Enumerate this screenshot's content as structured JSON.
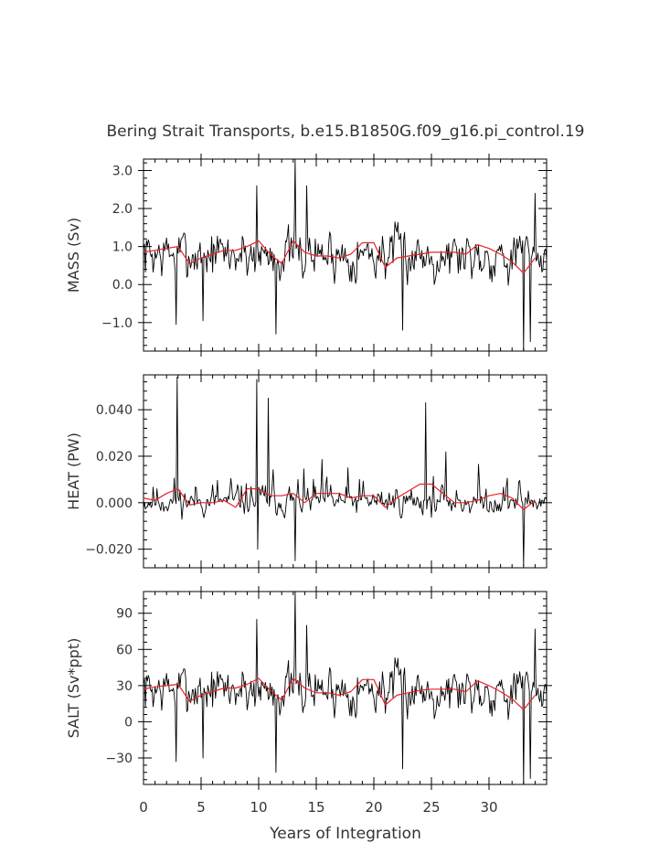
{
  "figure": {
    "title": "Bering Strait Transports, b.e15.B1850G.f09_g16.pi_control.19",
    "xlabel": "Years of Integration",
    "colors": {
      "monthly": "#000000",
      "annual": "#e8202a",
      "axes": "#000000",
      "text": "#333333"
    }
  },
  "chart_data": [
    {
      "type": "line",
      "name": "mass",
      "ylabel": "MASS (Sv)",
      "xlim": [
        0,
        35
      ],
      "ylim": [
        -1.75,
        3.3
      ],
      "yticks": [
        -1.0,
        0.0,
        1.0,
        2.0,
        3.0
      ],
      "ytick_labels": [
        "−1.0",
        "0.0",
        "1.0",
        "2.0",
        "3.0"
      ],
      "xticks": [
        0,
        5,
        10,
        15,
        20,
        25,
        30
      ],
      "series": [
        {
          "style": "monthly",
          "mean": 0.8,
          "amplitude": 0.75,
          "seed": 7,
          "spikes": [
            [
              2.8,
              -1.05
            ],
            [
              5.2,
              -0.95
            ],
            [
              9.8,
              2.6
            ],
            [
              11.5,
              -1.3
            ],
            [
              13.2,
              3.3
            ],
            [
              14.2,
              2.6
            ],
            [
              22.5,
              -1.2
            ],
            [
              33.0,
              -1.75
            ],
            [
              34.0,
              2.4
            ],
            [
              33.6,
              -1.5
            ]
          ]
        },
        {
          "style": "annual",
          "x": [
            0,
            1,
            2,
            3,
            4,
            5,
            6,
            7,
            8,
            9,
            10,
            11,
            12,
            13,
            14,
            15,
            16,
            17,
            18,
            19,
            20,
            21,
            22,
            23,
            24,
            25,
            26,
            27,
            28,
            29,
            30,
            31,
            32,
            33,
            34
          ],
          "y": [
            0.85,
            0.9,
            0.95,
            1.0,
            0.55,
            0.7,
            0.8,
            0.9,
            0.9,
            1.0,
            1.15,
            0.8,
            0.55,
            1.15,
            0.85,
            0.75,
            0.75,
            0.7,
            0.8,
            1.1,
            1.1,
            0.45,
            0.7,
            0.75,
            0.8,
            0.85,
            0.85,
            0.85,
            0.8,
            1.05,
            0.95,
            0.8,
            0.6,
            0.3,
            0.7
          ]
        }
      ]
    },
    {
      "type": "line",
      "name": "heat",
      "ylabel": "HEAT (PW)",
      "xlim": [
        0,
        35
      ],
      "ylim": [
        -0.028,
        0.055
      ],
      "yticks": [
        -0.02,
        0.0,
        0.02,
        0.04
      ],
      "ytick_labels": [
        "−0.020",
        "0.000",
        "0.020",
        "0.040"
      ],
      "xticks": [
        0,
        5,
        10,
        15,
        20,
        25,
        30
      ],
      "series": [
        {
          "style": "monthly",
          "mean": 0.001,
          "amplitude": 0.009,
          "seed": 11,
          "skew": true,
          "spikes": [
            [
              2.9,
              0.054
            ],
            [
              9.8,
              0.053
            ],
            [
              10.8,
              0.045
            ],
            [
              13.2,
              -0.025
            ],
            [
              24.5,
              0.043
            ],
            [
              33.0,
              -0.027
            ],
            [
              9.9,
              -0.02
            ]
          ]
        },
        {
          "style": "annual",
          "x": [
            0,
            1,
            2,
            3,
            4,
            5,
            6,
            7,
            8,
            9,
            10,
            11,
            12,
            13,
            14,
            15,
            16,
            17,
            18,
            19,
            20,
            21,
            22,
            23,
            24,
            25,
            26,
            27,
            28,
            29,
            30,
            31,
            32,
            33,
            34
          ],
          "y": [
            0.002,
            0.001,
            0.004,
            0.006,
            -0.001,
            0.0,
            0.0,
            0.001,
            -0.002,
            0.006,
            0.006,
            0.003,
            0.003,
            0.004,
            0.0,
            0.004,
            0.004,
            0.004,
            0.002,
            0.003,
            0.003,
            -0.002,
            0.002,
            0.005,
            0.008,
            0.008,
            0.004,
            0.0,
            0.0,
            0.001,
            0.003,
            0.004,
            0.002,
            -0.003,
            0.001
          ]
        }
      ]
    },
    {
      "type": "line",
      "name": "salt",
      "ylabel": "SALT (Sv*ppt)",
      "xlim": [
        0,
        35
      ],
      "ylim": [
        -52,
        108
      ],
      "yticks": [
        -30,
        0,
        30,
        60,
        90
      ],
      "ytick_labels": [
        "−30",
        "0",
        "30",
        "60",
        "90"
      ],
      "xticks": [
        0,
        5,
        10,
        15,
        20,
        25,
        30
      ],
      "xtick_labels": [
        "0",
        "5",
        "10",
        "15",
        "20",
        "25",
        "30"
      ],
      "series": [
        {
          "style": "monthly",
          "mean": 27,
          "amplitude": 23,
          "seed": 7,
          "spikes": [
            [
              2.8,
              -33
            ],
            [
              5.2,
              -30
            ],
            [
              9.8,
              85
            ],
            [
              11.5,
              -42
            ],
            [
              13.2,
              108
            ],
            [
              14.2,
              80
            ],
            [
              22.5,
              -39
            ],
            [
              33.0,
              -52
            ],
            [
              34.0,
              77
            ],
            [
              33.6,
              -47
            ]
          ]
        },
        {
          "style": "annual",
          "x": [
            0,
            1,
            2,
            3,
            4,
            5,
            6,
            7,
            8,
            9,
            10,
            11,
            12,
            13,
            14,
            15,
            16,
            17,
            18,
            19,
            20,
            21,
            22,
            23,
            24,
            25,
            26,
            27,
            28,
            29,
            30,
            31,
            32,
            33,
            34
          ],
          "y": [
            27,
            29,
            30,
            31,
            17,
            22,
            25,
            28,
            28,
            31,
            36,
            26,
            18,
            36,
            28,
            24,
            24,
            22,
            25,
            35,
            35,
            14,
            22,
            24,
            26,
            27,
            27,
            27,
            25,
            34,
            30,
            25,
            19,
            10,
            22
          ]
        }
      ]
    }
  ]
}
